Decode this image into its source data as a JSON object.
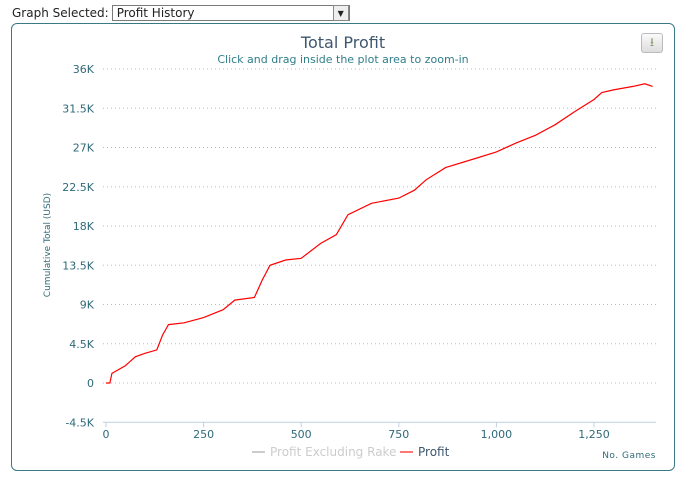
{
  "top": {
    "label": "Graph Selected:",
    "selected": "Profit History"
  },
  "chart_data": {
    "type": "line",
    "title": "Total Profit",
    "subtitle": "Click and drag inside the plot area to zoom-in",
    "xlabel": "No. Games",
    "ylabel": "Cumulative Total (USD)",
    "xlim": [
      0,
      1420
    ],
    "ylim": [
      -4500,
      36000
    ],
    "xticks": [
      0,
      250,
      500,
      750,
      1000,
      1250
    ],
    "xtick_labels": [
      "0",
      "250",
      "500",
      "750",
      "1,000",
      "1,250"
    ],
    "yticks": [
      -4500,
      0,
      4500,
      9000,
      13500,
      18000,
      22500,
      27000,
      31500,
      36000
    ],
    "ytick_labels": [
      "-4.5K",
      "0",
      "4.5K",
      "9K",
      "13.5K",
      "18K",
      "22.5K",
      "27K",
      "31.5K",
      "36K"
    ],
    "grid": true,
    "legend": {
      "placement": "bottom",
      "entries": [
        {
          "name": "Profit Excluding Rake",
          "color": "#cccccc",
          "visible": false
        },
        {
          "name": "Profit",
          "color": "#ff0000",
          "visible": true
        }
      ]
    },
    "series": [
      {
        "name": "Profit",
        "color": "#ff0000",
        "x": [
          0,
          10,
          15,
          50,
          75,
          100,
          130,
          145,
          160,
          200,
          250,
          300,
          330,
          380,
          400,
          420,
          460,
          500,
          550,
          590,
          620,
          680,
          750,
          790,
          820,
          870,
          950,
          1000,
          1050,
          1100,
          1150,
          1200,
          1250,
          1270,
          1300,
          1350,
          1380,
          1400
        ],
        "y": [
          0,
          0,
          1100,
          2000,
          3000,
          3400,
          3800,
          5500,
          6700,
          6900,
          7500,
          8400,
          9500,
          9800,
          11800,
          13500,
          14100,
          14300,
          16000,
          17000,
          19300,
          20600,
          21200,
          22100,
          23300,
          24700,
          25800,
          26500,
          27500,
          28400,
          29600,
          31100,
          32500,
          33300,
          33600,
          34000,
          34300,
          34000
        ]
      }
    ]
  }
}
